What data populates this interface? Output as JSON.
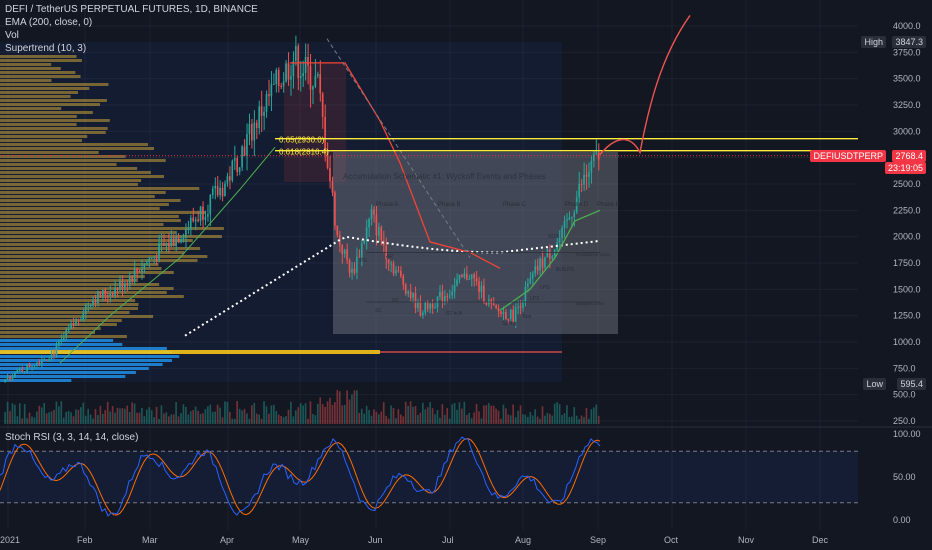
{
  "header": {
    "symbol_line": "DEFI / TetherUS PERPETUAL FUTURES, 1D, BINANCE",
    "ema_label": "EMA (200, close, 0)",
    "vol_label": "Vol",
    "supertrend_label": "Supertrend (10, 3)",
    "stoch_label": "Stoch RSI (3, 3, 14, 14, close)"
  },
  "price_axis": {
    "ticks": [
      "4000.0",
      "3750.0",
      "3500.0",
      "3250.0",
      "3000.0",
      "2750.0",
      "2500.0",
      "2250.0",
      "2000.0",
      "1750.0",
      "1500.0",
      "1250.0",
      "1000.0",
      "750.0",
      "500.0",
      "250.0"
    ],
    "high_label": "High",
    "high_value": "3847.3",
    "low_label": "Low",
    "low_value": "595.4",
    "current_symbol": "DEFIUSDTPERP",
    "current_value": "2768.4",
    "countdown": "23:19:05"
  },
  "stoch_axis": {
    "ticks": [
      "100.00",
      "50.00",
      "0.00"
    ]
  },
  "time_axis": {
    "labels": [
      "2021",
      "Feb",
      "Mar",
      "Apr",
      "May",
      "Jun",
      "Jul",
      "Aug",
      "Sep",
      "Oct",
      "Nov",
      "Dec"
    ]
  },
  "fib": {
    "level_1": "0.65(2930.0)",
    "level_2": "0.618(2816.4)"
  },
  "wyckoff": {
    "title": "Accumulation Schematic #1: Wyckoff Events and Phases",
    "phases": [
      "Phase A",
      "Phase B",
      "Phase C",
      "Phase D",
      "Phase E"
    ],
    "events": [
      "PS",
      "SC",
      "AR",
      "ST",
      "ST in B",
      "Spring",
      "Test",
      "LPS",
      "SOS",
      "BU/LPS",
      "LPS"
    ],
    "lines": [
      "Resistance Lines",
      "Support Lines"
    ]
  },
  "colors": {
    "background": "#131722",
    "up": "#26a69a",
    "down": "#ef5350",
    "fib_line": "#ffeb3b",
    "ema": "#ffffff",
    "supertrend_up": "#4caf50",
    "supertrend_down": "#f44336",
    "stoch_k": "#2962ff",
    "stoch_d": "#ff6d00",
    "volume_profile": "#c8a23a",
    "volume_profile_blue": "#2196f3"
  },
  "chart_data": {
    "type": "candlestick",
    "title": "DEFI / TetherUS PERPETUAL FUTURES, 1D, BINANCE",
    "ylim": [
      250,
      4100
    ],
    "high": 3847.3,
    "low": 595.4,
    "last_close": 2768.4,
    "series": [
      {
        "name": "DEFIUSDTPERP",
        "x": [
          "2021",
          "Feb",
          "Mar",
          "Apr",
          "May",
          "Jun",
          "Jul",
          "Aug",
          "Sep"
        ],
        "approx_close": [
          650,
          1400,
          1900,
          2500,
          3600,
          1600,
          1350,
          1900,
          2768
        ]
      }
    ],
    "fib_levels": [
      {
        "label": "0.65(2930.0)",
        "value": 2930.0
      },
      {
        "label": "0.618(2816.4)",
        "value": 2816.4
      }
    ],
    "stoch_rsi": {
      "range": [
        0,
        100
      ],
      "bands": [
        20,
        80
      ]
    }
  }
}
